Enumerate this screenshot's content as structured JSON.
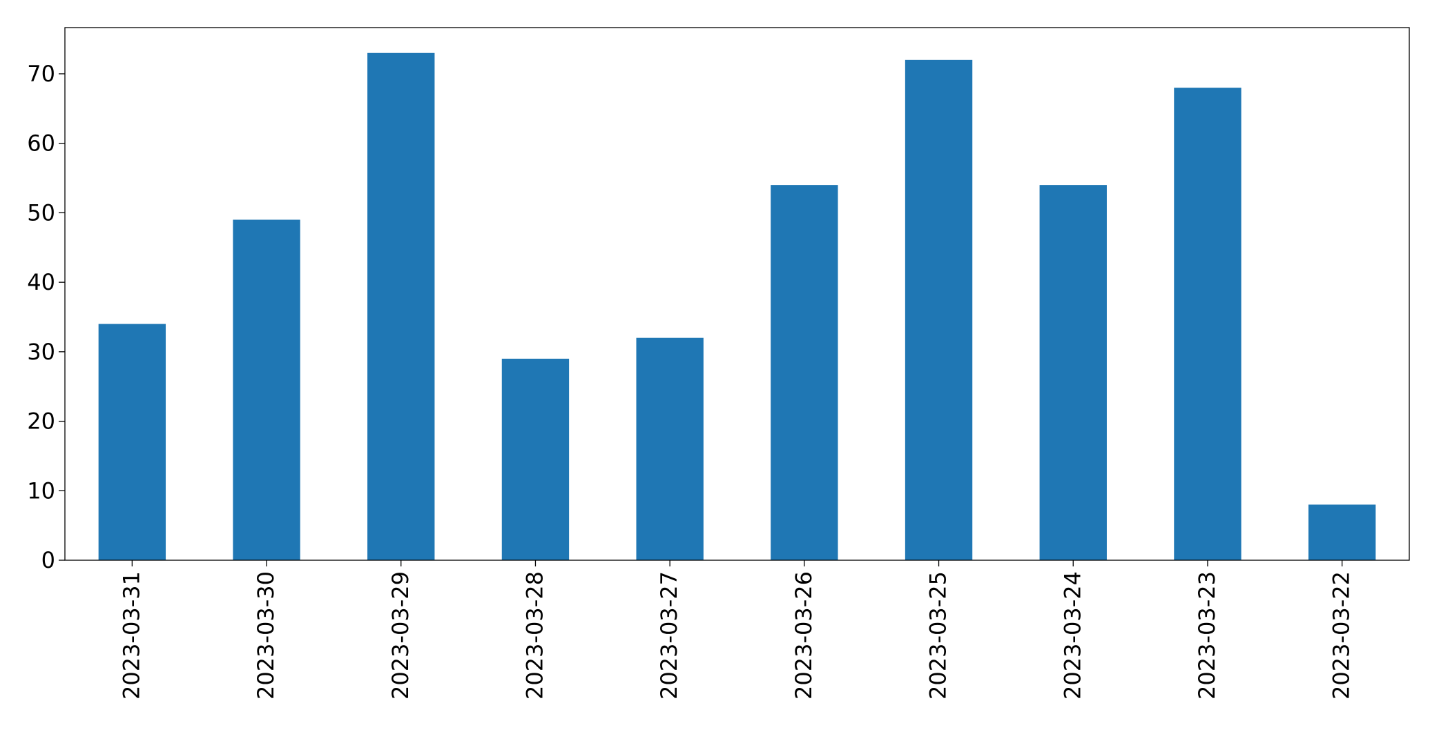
{
  "chart_data": {
    "type": "bar",
    "categories": [
      "2023-03-31",
      "2023-03-30",
      "2023-03-29",
      "2023-03-28",
      "2023-03-27",
      "2023-03-26",
      "2023-03-25",
      "2023-03-24",
      "2023-03-23",
      "2023-03-22"
    ],
    "values": [
      34,
      49,
      73,
      29,
      32,
      54,
      72,
      54,
      68,
      8
    ],
    "color": "#1f77b4",
    "ylim": [
      0,
      76.65
    ],
    "yticks": [
      0,
      10,
      20,
      30,
      40,
      50,
      60,
      70
    ],
    "grid": false
  }
}
